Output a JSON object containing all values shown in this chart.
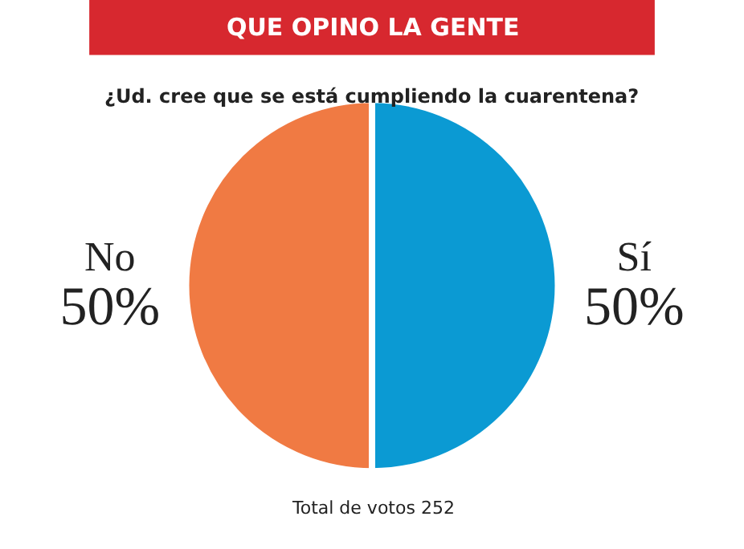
{
  "chart_data": {
    "type": "pie",
    "title": "QUE OPINO LA GENTE",
    "subtitle": "¿Ud. cree que se está cumpliendo la cuarentena?",
    "categories": [
      "Sí",
      "No"
    ],
    "values": [
      50,
      50
    ],
    "colors": [
      "#0b9ad3",
      "#f07a43"
    ],
    "value_labels": [
      "50%",
      "50%"
    ],
    "legend": false,
    "annotations": [
      "Total de votos 252"
    ]
  }
}
